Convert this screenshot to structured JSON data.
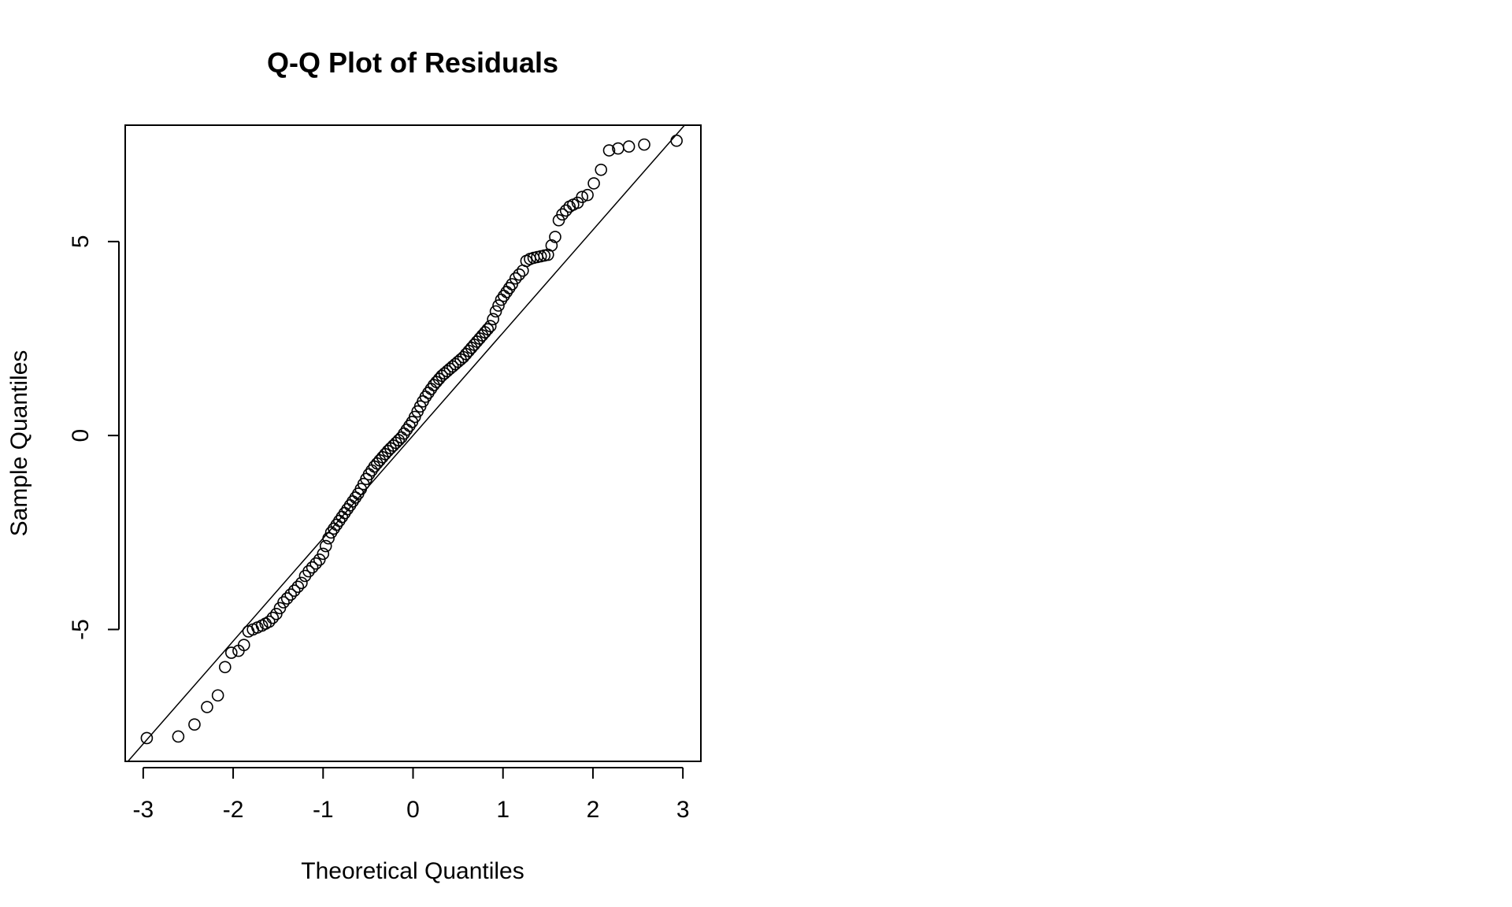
{
  "chart_data": {
    "type": "scatter",
    "title": "Q-Q Plot of Residuals",
    "xlabel": "Theoretical Quantiles",
    "ylabel": "Sample Quantiles",
    "xlim": [
      -3.2,
      3.2
    ],
    "ylim": [
      -8.4,
      8.0
    ],
    "x_ticks": [
      -3,
      -2,
      -1,
      0,
      1,
      2,
      3
    ],
    "x_tick_labels": [
      "-3",
      "-2",
      "-1",
      "0",
      "1",
      "2",
      "3"
    ],
    "y_ticks": [
      -5,
      0,
      5
    ],
    "y_tick_labels": [
      "-5",
      "0",
      "5"
    ],
    "grid": false,
    "reference_line": {
      "intercept": 0.0,
      "slope": 2.65
    },
    "points": {
      "x": [
        -2.96,
        -2.61,
        -2.43,
        -2.29,
        -2.17,
        -2.09,
        -2.02,
        -1.94,
        -1.88,
        -1.83,
        -1.78,
        -1.73,
        -1.68,
        -1.64,
        -1.6,
        -1.56,
        -1.52,
        -1.48,
        -1.44,
        -1.4,
        -1.36,
        -1.32,
        -1.28,
        -1.24,
        -1.2,
        -1.16,
        -1.12,
        -1.08,
        -1.04,
        -1.0,
        -0.97,
        -0.94,
        -0.91,
        -0.88,
        -0.85,
        -0.82,
        -0.79,
        -0.76,
        -0.73,
        -0.7,
        -0.67,
        -0.64,
        -0.61,
        -0.58,
        -0.55,
        -0.52,
        -0.49,
        -0.46,
        -0.43,
        -0.4,
        -0.37,
        -0.34,
        -0.31,
        -0.28,
        -0.25,
        -0.22,
        -0.19,
        -0.16,
        -0.13,
        -0.1,
        -0.07,
        -0.04,
        -0.01,
        0.02,
        0.05,
        0.08,
        0.11,
        0.14,
        0.17,
        0.2,
        0.23,
        0.26,
        0.29,
        0.32,
        0.35,
        0.38,
        0.41,
        0.44,
        0.47,
        0.5,
        0.53,
        0.56,
        0.59,
        0.62,
        0.65,
        0.68,
        0.71,
        0.74,
        0.77,
        0.8,
        0.83,
        0.86,
        0.89,
        0.92,
        0.95,
        0.98,
        1.01,
        1.04,
        1.07,
        1.1,
        1.14,
        1.18,
        1.22,
        1.26,
        1.3,
        1.34,
        1.38,
        1.42,
        1.46,
        1.5,
        1.54,
        1.58,
        1.62,
        1.66,
        1.7,
        1.74,
        1.78,
        1.83,
        1.88,
        1.94,
        2.01,
        2.09,
        2.18,
        2.28,
        2.4,
        2.57,
        2.93
      ],
      "y": [
        -7.8,
        -7.76,
        -7.45,
        -7.0,
        -6.7,
        -5.97,
        -5.6,
        -5.55,
        -5.4,
        -5.05,
        -5.0,
        -4.95,
        -4.9,
        -4.85,
        -4.8,
        -4.7,
        -4.6,
        -4.45,
        -4.3,
        -4.2,
        -4.1,
        -4.0,
        -3.9,
        -3.8,
        -3.62,
        -3.5,
        -3.4,
        -3.3,
        -3.2,
        -3.05,
        -2.85,
        -2.65,
        -2.5,
        -2.4,
        -2.3,
        -2.2,
        -2.1,
        -2.0,
        -1.9,
        -1.8,
        -1.7,
        -1.6,
        -1.5,
        -1.38,
        -1.25,
        -1.12,
        -1.0,
        -0.9,
        -0.8,
        -0.72,
        -0.64,
        -0.56,
        -0.48,
        -0.4,
        -0.33,
        -0.26,
        -0.19,
        -0.12,
        -0.05,
        0.05,
        0.15,
        0.25,
        0.35,
        0.48,
        0.62,
        0.75,
        0.88,
        1.0,
        1.1,
        1.2,
        1.3,
        1.38,
        1.46,
        1.54,
        1.6,
        1.66,
        1.72,
        1.78,
        1.84,
        1.9,
        1.96,
        2.02,
        2.1,
        2.18,
        2.26,
        2.34,
        2.42,
        2.5,
        2.58,
        2.66,
        2.74,
        2.82,
        3.0,
        3.2,
        3.35,
        3.5,
        3.6,
        3.7,
        3.8,
        3.9,
        4.05,
        4.15,
        4.25,
        4.5,
        4.55,
        4.58,
        4.6,
        4.62,
        4.64,
        4.66,
        4.9,
        5.12,
        5.55,
        5.7,
        5.8,
        5.9,
        5.95,
        6.0,
        6.15,
        6.2,
        6.5,
        6.85,
        7.35,
        7.4,
        7.45,
        7.5,
        7.6
      ]
    }
  }
}
